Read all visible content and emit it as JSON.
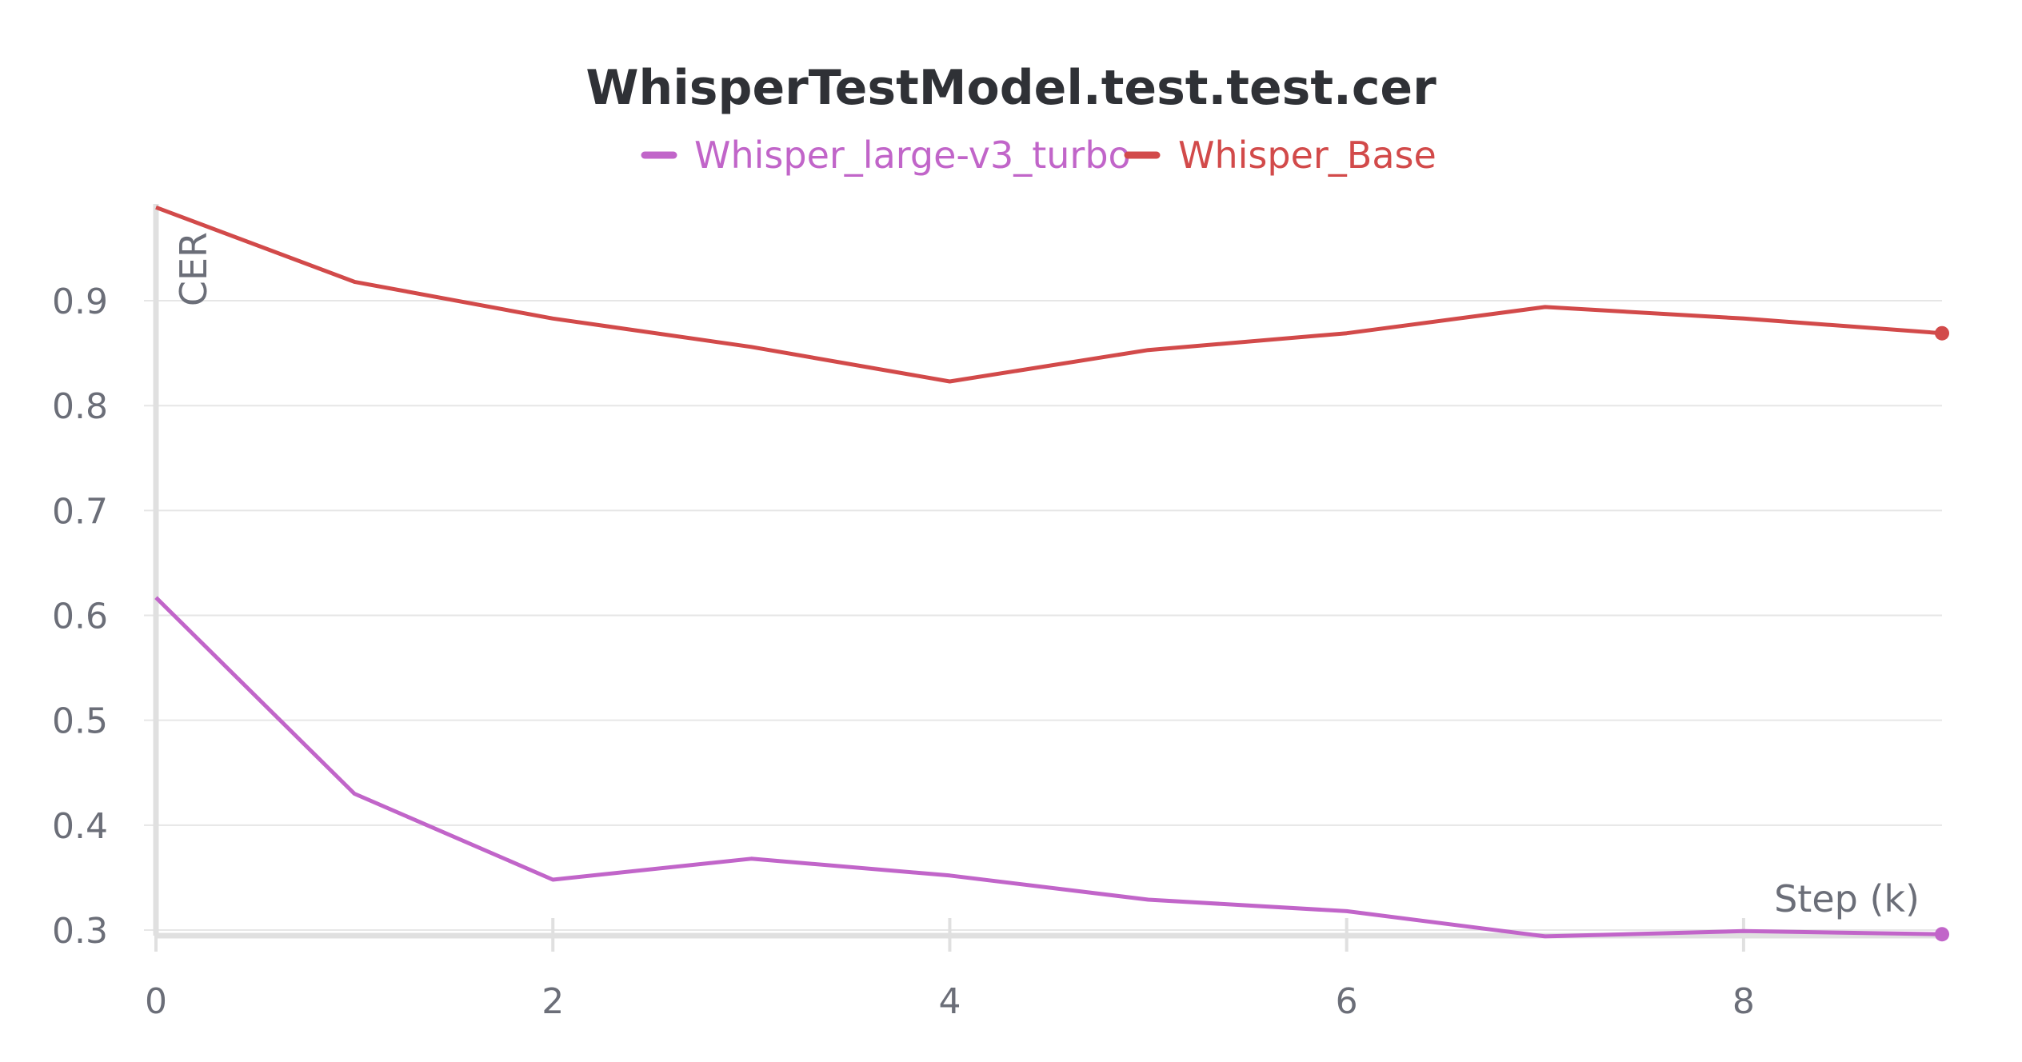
{
  "chart_data": {
    "type": "line",
    "title": "WhisperTestModel.test.test.cer",
    "xlabel": "Step (k)",
    "ylabel": "CER",
    "xlim": [
      0,
      9
    ],
    "ylim": [
      0.3,
      0.99
    ],
    "xticks": [
      0,
      2,
      4,
      6,
      8
    ],
    "yticks": [
      0.3,
      0.4,
      0.5,
      0.6,
      0.7,
      0.8,
      0.9
    ],
    "grid": true,
    "legend_position": "top-center",
    "x": [
      0,
      1,
      2,
      3,
      4,
      5,
      6,
      7,
      8,
      9
    ],
    "series": [
      {
        "name": "Whisper_large-v3_turbo",
        "color": "#c165c9",
        "values": [
          0.617,
          0.43,
          0.348,
          0.368,
          0.352,
          0.329,
          0.318,
          0.294,
          0.299,
          0.296
        ]
      },
      {
        "name": "Whisper_Base",
        "color": "#d24a4a",
        "values": [
          0.989,
          0.918,
          0.883,
          0.856,
          0.823,
          0.853,
          0.869,
          0.894,
          0.883,
          0.869
        ]
      }
    ]
  }
}
